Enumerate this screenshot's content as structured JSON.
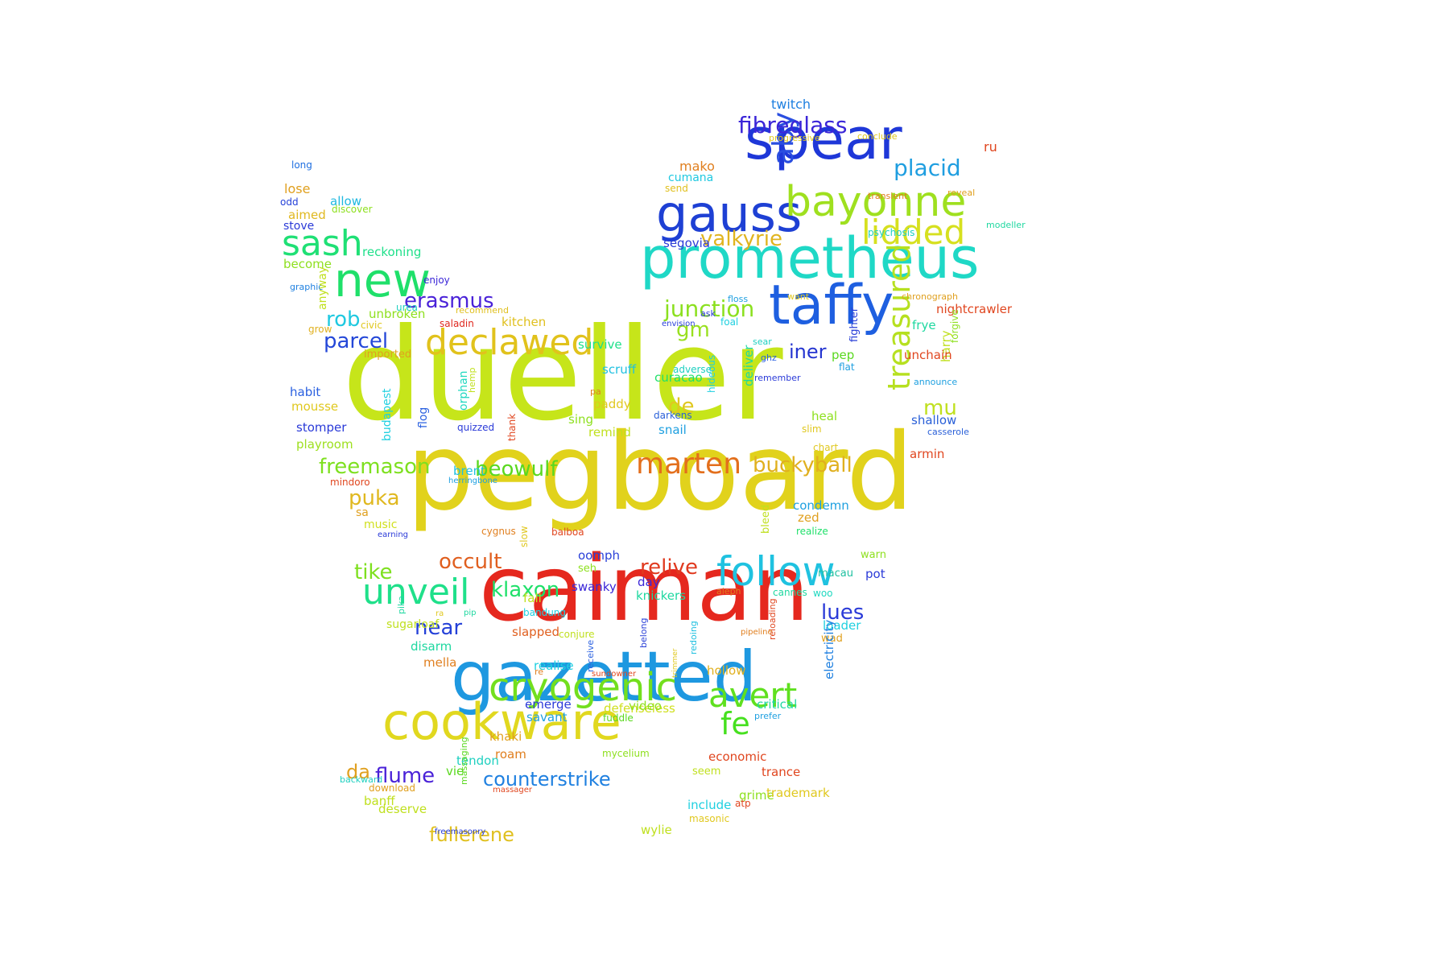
{
  "words": [
    {
      "t": "dueller",
      "c": "#c6e51a"
    },
    {
      "t": "pegboard",
      "c": "#e1d21c"
    },
    {
      "t": "caiman",
      "c": "#e5281e"
    },
    {
      "t": "prometheus",
      "c": "#1fd8c6"
    },
    {
      "t": "spear",
      "c": "#1e37d8"
    },
    {
      "t": "gazetted",
      "c": "#1e98e0"
    },
    {
      "t": "cookware",
      "c": "#e1d81f"
    },
    {
      "t": "taffy",
      "c": "#1e5fe0"
    },
    {
      "t": "new",
      "c": "#1fe06a"
    },
    {
      "t": "gauss",
      "c": "#1e40d4"
    },
    {
      "t": "bayonne",
      "c": "#9fe01f"
    },
    {
      "t": "follow",
      "c": "#1fc2e0"
    },
    {
      "t": "cryogenic",
      "c": "#73df1e"
    },
    {
      "t": "declawed",
      "c": "#e1c21c"
    },
    {
      "t": "sash",
      "c": "#1fe075"
    },
    {
      "t": "lidded",
      "c": "#d6e01f"
    },
    {
      "t": "unveil",
      "c": "#1fe08a"
    },
    {
      "t": "avert",
      "c": "#5fe01f"
    },
    {
      "t": "marten",
      "c": "#e36f1c"
    },
    {
      "t": "treasured",
      "c": "#b6e01f"
    },
    {
      "t": "fe",
      "c": "#46e01f"
    },
    {
      "t": "aby",
      "c": "#2a4ee0"
    },
    {
      "t": "fibreglass",
      "c": "#3b26d8"
    },
    {
      "t": "placid",
      "c": "#1f9ee0"
    },
    {
      "t": "junction",
      "c": "#8be01f"
    },
    {
      "t": "valkyrie",
      "c": "#e0b41f"
    },
    {
      "t": "erasmus",
      "c": "#4a22d8"
    },
    {
      "t": "rob",
      "c": "#1fc9e0"
    },
    {
      "t": "parcel",
      "c": "#2447d8"
    },
    {
      "t": "iner",
      "c": "#2434d0"
    },
    {
      "t": "gm",
      "c": "#99e01f"
    },
    {
      "t": "de",
      "c": "#e0c81f"
    },
    {
      "t": "mu",
      "c": "#c0e01f"
    },
    {
      "t": "buckyball",
      "c": "#e0b01f"
    },
    {
      "t": "freemason",
      "c": "#7ee01f"
    },
    {
      "t": "beowulf",
      "c": "#5ad81f"
    },
    {
      "t": "occult",
      "c": "#e05f1f"
    },
    {
      "t": "puka",
      "c": "#e0b81f"
    },
    {
      "t": "tike",
      "c": "#7ee01f"
    },
    {
      "t": "klaxon",
      "c": "#1fe06a"
    },
    {
      "t": "relive",
      "c": "#e03a1f"
    },
    {
      "t": "near",
      "c": "#2440d8"
    },
    {
      "t": "lues",
      "c": "#2a3ad8"
    },
    {
      "t": "counterstrike",
      "c": "#1f80e0"
    },
    {
      "t": "flume",
      "c": "#4a22d8"
    },
    {
      "t": "da",
      "c": "#e0a01f"
    },
    {
      "t": "fullerene",
      "c": "#e0c01f"
    },
    {
      "t": "twitch",
      "c": "#1f80e0"
    },
    {
      "t": "mako",
      "c": "#e07f1f"
    },
    {
      "t": "cumana",
      "c": "#1fc8e0"
    },
    {
      "t": "send",
      "c": "#e0c01f"
    },
    {
      "t": "ru",
      "c": "#e0461f"
    },
    {
      "t": "long",
      "c": "#1f6fe0"
    },
    {
      "t": "lose",
      "c": "#e0a01f"
    },
    {
      "t": "allow",
      "c": "#1fb8e0"
    },
    {
      "t": "odd",
      "c": "#2440d8"
    },
    {
      "t": "discover",
      "c": "#8ee01f"
    },
    {
      "t": "aimed",
      "c": "#e0b81f"
    },
    {
      "t": "stove",
      "c": "#2a3ad8"
    },
    {
      "t": "reckoning",
      "c": "#1fe08a"
    },
    {
      "t": "become",
      "c": "#8ee01f"
    },
    {
      "t": "graphic",
      "c": "#1f80e0"
    },
    {
      "t": "enjoy",
      "c": "#3a26d8"
    },
    {
      "t": "anyway",
      "c": "#c0e01f"
    },
    {
      "t": "unbroken",
      "c": "#8ee01f"
    },
    {
      "t": "urea",
      "c": "#1fd0c0"
    },
    {
      "t": "grow",
      "c": "#e0b01f"
    },
    {
      "t": "civic",
      "c": "#e0c81f"
    },
    {
      "t": "recommend",
      "c": "#e0c01f"
    },
    {
      "t": "saladin",
      "c": "#e0281f"
    },
    {
      "t": "kitchen",
      "c": "#e0c01f"
    },
    {
      "t": "imported",
      "c": "#e0a01f"
    },
    {
      "t": "habit",
      "c": "#2a60e0"
    },
    {
      "t": "mousse",
      "c": "#e0c81f"
    },
    {
      "t": "stomper",
      "c": "#2a3ad8"
    },
    {
      "t": "playroom",
      "c": "#9ee01f"
    },
    {
      "t": "mindoro",
      "c": "#e0461f"
    },
    {
      "t": "budapest",
      "c": "#1fd0e0"
    },
    {
      "t": "flog",
      "c": "#2a60e0"
    },
    {
      "t": "orphan",
      "c": "#1fd8c0"
    },
    {
      "t": "hemp",
      "c": "#c0e01f"
    },
    {
      "t": "quizzed",
      "c": "#2a3ad8"
    },
    {
      "t": "thank",
      "c": "#e0461f"
    },
    {
      "t": "brent",
      "c": "#1fc0e0"
    },
    {
      "t": "herringbone",
      "c": "#1fa0e0"
    },
    {
      "t": "sa",
      "c": "#e0a01f"
    },
    {
      "t": "music",
      "c": "#d0e01f"
    },
    {
      "t": "earning",
      "c": "#2a3ad8"
    },
    {
      "t": "slow",
      "c": "#e0c81f"
    },
    {
      "t": "cygnus",
      "c": "#e07f1f"
    },
    {
      "t": "balboa",
      "c": "#e0461f"
    },
    {
      "t": "bleed",
      "c": "#c0e01f"
    },
    {
      "t": "deliver",
      "c": "#1fd8a0"
    },
    {
      "t": "fighter",
      "c": "#2a40d8"
    },
    {
      "t": "frye",
      "c": "#1fd8a0"
    },
    {
      "t": "nightcrawler",
      "c": "#e0461f"
    },
    {
      "t": "harry",
      "c": "#c0e01f"
    },
    {
      "t": "forgive",
      "c": "#8ee01f"
    },
    {
      "t": "pep",
      "c": "#5ad81f"
    },
    {
      "t": "unchain",
      "c": "#e0461f"
    },
    {
      "t": "flat",
      "c": "#1fa0e0"
    },
    {
      "t": "survive",
      "c": "#1fe08a"
    },
    {
      "t": "scruff",
      "c": "#1fc0e0"
    },
    {
      "t": "paddy",
      "c": "#e0c81f"
    },
    {
      "t": "curacao",
      "c": "#1fe06a"
    },
    {
      "t": "sing",
      "c": "#8ee01f"
    },
    {
      "t": "remind",
      "c": "#c0e01f"
    },
    {
      "t": "pa",
      "c": "#e07f1f"
    },
    {
      "t": "darkens",
      "c": "#2a60d8"
    },
    {
      "t": "snail",
      "c": "#1fa0e0"
    },
    {
      "t": "adverse",
      "c": "#1fd0c0"
    },
    {
      "t": "hideous",
      "c": "#1fd0e0"
    },
    {
      "t": "remember",
      "c": "#2a3ad8"
    },
    {
      "t": "ghz",
      "c": "#2a60e0"
    },
    {
      "t": "sear",
      "c": "#1fd0c0"
    },
    {
      "t": "heal",
      "c": "#8ee01f"
    },
    {
      "t": "slim",
      "c": "#e0c81f"
    },
    {
      "t": "shallow",
      "c": "#2a60d8"
    },
    {
      "t": "announce",
      "c": "#1fa0e0"
    },
    {
      "t": "casserole",
      "c": "#2a60d8"
    },
    {
      "t": "armin",
      "c": "#e0461f"
    },
    {
      "t": "chart",
      "c": "#e0c81f"
    },
    {
      "t": "condemn",
      "c": "#1fa0e0"
    },
    {
      "t": "zed",
      "c": "#e0a01f"
    },
    {
      "t": "realize",
      "c": "#1fe06a"
    },
    {
      "t": "macau",
      "c": "#1fc0a0"
    },
    {
      "t": "warn",
      "c": "#8ee01f"
    },
    {
      "t": "pot",
      "c": "#2a3ad8"
    },
    {
      "t": "woo",
      "c": "#1fd8c0"
    },
    {
      "t": "cannes",
      "c": "#1fd8a0"
    },
    {
      "t": "aleph",
      "c": "#e07f1f"
    },
    {
      "t": "reloading",
      "c": "#e0461f"
    },
    {
      "t": "pipeline",
      "c": "#e07f1f"
    },
    {
      "t": "belong",
      "c": "#2a40d8"
    },
    {
      "t": "redoing",
      "c": "#1fc0e0"
    },
    {
      "t": "trimmer",
      "c": "#e0c81f"
    },
    {
      "t": "sundowner",
      "c": "#e0461f"
    },
    {
      "t": "receive",
      "c": "#2a60e0"
    },
    {
      "t": "hollow",
      "c": "#e0b01f"
    },
    {
      "t": "loader",
      "c": "#1fd0e0"
    },
    {
      "t": "wad",
      "c": "#e0a01f"
    },
    {
      "t": "electricity",
      "c": "#1f80e0"
    },
    {
      "t": "oomph",
      "c": "#2a40d8"
    },
    {
      "t": "seh",
      "c": "#8ee01f"
    },
    {
      "t": "day",
      "c": "#3a26d8"
    },
    {
      "t": "knickers",
      "c": "#1fd8a0"
    },
    {
      "t": "swanky",
      "c": "#3a26d8"
    },
    {
      "t": "sugarloaf",
      "c": "#c0e01f"
    },
    {
      "t": "fall",
      "c": "#c0e01f"
    },
    {
      "t": "bandung",
      "c": "#1fd0e0"
    },
    {
      "t": "pika",
      "c": "#1fd8a0"
    },
    {
      "t": "pip",
      "c": "#1fd8a0"
    },
    {
      "t": "ra",
      "c": "#e0c81f"
    },
    {
      "t": "disarm",
      "c": "#1fd8a0"
    },
    {
      "t": "mella",
      "c": "#e07f1f"
    },
    {
      "t": "slapped",
      "c": "#e05f1f"
    },
    {
      "t": "conjure",
      "c": "#c0e01f"
    },
    {
      "t": "realise",
      "c": "#1fd0e0"
    },
    {
      "t": "re",
      "c": "#e07f1f"
    },
    {
      "t": "emerge",
      "c": "#2a3ad8"
    },
    {
      "t": "savant",
      "c": "#1fa0e0"
    },
    {
      "t": "defenseless",
      "c": "#d0e01f"
    },
    {
      "t": "video",
      "c": "#8ee01f"
    },
    {
      "t": "fuddle",
      "c": "#5ad81f"
    },
    {
      "t": "critical",
      "c": "#1fd8a0"
    },
    {
      "t": "prefer",
      "c": "#1fa0e0"
    },
    {
      "t": "khaki",
      "c": "#e0a01f"
    },
    {
      "t": "tendon",
      "c": "#1fd0c0"
    },
    {
      "t": "vie",
      "c": "#5ad81f"
    },
    {
      "t": "mycelium",
      "c": "#8ee01f"
    },
    {
      "t": "roam",
      "c": "#e07f1f"
    },
    {
      "t": "economic",
      "c": "#e0461f"
    },
    {
      "t": "trance",
      "c": "#e0461f"
    },
    {
      "t": "seem",
      "c": "#c0e01f"
    },
    {
      "t": "grime",
      "c": "#8ee01f"
    },
    {
      "t": "atp",
      "c": "#e0461f"
    },
    {
      "t": "download",
      "c": "#e0a01f"
    },
    {
      "t": "backward",
      "c": "#1fd0c0"
    },
    {
      "t": "massaging",
      "c": "#5ad81f"
    },
    {
      "t": "massager",
      "c": "#e0461f"
    },
    {
      "t": "banff",
      "c": "#c0e01f"
    },
    {
      "t": "deserve",
      "c": "#c0e01f"
    },
    {
      "t": "trademark",
      "c": "#e0c81f"
    },
    {
      "t": "include",
      "c": "#1fd0e0"
    },
    {
      "t": "masonic",
      "c": "#e0c81f"
    },
    {
      "t": "freemasonry",
      "c": "#2a40d8"
    },
    {
      "t": "wylie",
      "c": "#c0e01f"
    },
    {
      "t": "segovia",
      "c": "#2a3ad8"
    },
    {
      "t": "psychosis",
      "c": "#1fd0c0"
    },
    {
      "t": "modeller",
      "c": "#1fd8a0"
    },
    {
      "t": "transient",
      "c": "#e07f1f"
    },
    {
      "t": "reveal",
      "c": "#e0a01f"
    },
    {
      "t": "progressive",
      "c": "#e0c81f"
    },
    {
      "t": "conclude",
      "c": "#e0c81f"
    },
    {
      "t": "floss",
      "c": "#1fa0e0"
    },
    {
      "t": "want",
      "c": "#e0c81f"
    },
    {
      "t": "chronograph",
      "c": "#e0a01f"
    },
    {
      "t": "ask",
      "c": "#2a3ad8"
    },
    {
      "t": "envision",
      "c": "#2a40d8"
    },
    {
      "t": "foal",
      "c": "#1fd0e0"
    }
  ]
}
